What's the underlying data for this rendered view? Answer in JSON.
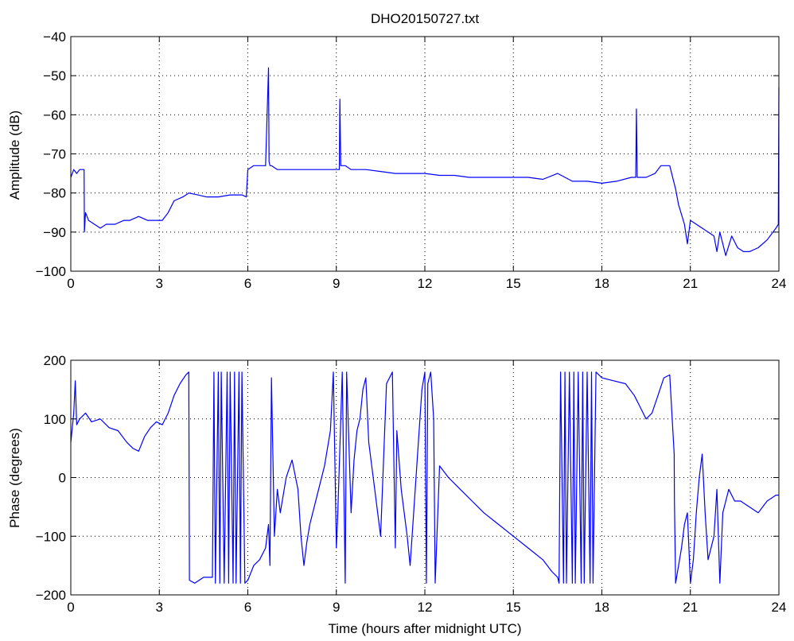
{
  "chart_data": [
    {
      "type": "line",
      "title": "DHO20150727.txt",
      "xlabel": "",
      "ylabel": "Amplitude (dB)",
      "xlim": [
        0,
        24
      ],
      "ylim": [
        -100,
        -40
      ],
      "xticks": [
        0,
        3,
        6,
        9,
        12,
        15,
        18,
        21,
        24
      ],
      "yticks": [
        -100,
        -90,
        -80,
        -70,
        -60,
        -50,
        -40
      ],
      "xtick_labels": [
        "0",
        "3",
        "6",
        "9",
        "12",
        "15",
        "18",
        "21",
        "24"
      ],
      "ytick_labels": [
        "−100",
        "−90",
        "−80",
        "−70",
        "−60",
        "−50",
        "−40"
      ],
      "grid": true,
      "color": "#0000ff",
      "series": [
        {
          "x": [
            0,
            0.1,
            0.2,
            0.3,
            0.45,
            0.46,
            0.5,
            0.55,
            0.6,
            0.8,
            1.0,
            1.2,
            1.5,
            1.8,
            2.0,
            2.3,
            2.6,
            2.9,
            3.1,
            3.3,
            3.5,
            3.8,
            4.0,
            4.3,
            4.6,
            5.0,
            5.4,
            5.8,
            5.95,
            6.0,
            6.2,
            6.4,
            6.6,
            6.7,
            6.72,
            6.75,
            6.8,
            7.0,
            7.5,
            8.0,
            8.5,
            9.0,
            9.1,
            9.12,
            9.15,
            9.3,
            9.5,
            10.0,
            10.5,
            11.0,
            11.5,
            12.0,
            12.5,
            13.0,
            13.5,
            14.0,
            14.5,
            15.0,
            15.5,
            16.0,
            16.5,
            17.0,
            17.5,
            18.0,
            18.5,
            19.0,
            19.15,
            19.17,
            19.2,
            19.5,
            19.8,
            20.0,
            20.3,
            20.5,
            20.6,
            20.8,
            20.9,
            21.0,
            21.2,
            21.4,
            21.6,
            21.8,
            21.9,
            22.0,
            22.2,
            22.4,
            22.6,
            22.8,
            23.0,
            23.3,
            23.6,
            23.9,
            23.98,
            24.0
          ],
          "y": [
            -76,
            -74,
            -75,
            -74,
            -74,
            -90,
            -85,
            -86,
            -87,
            -88,
            -89,
            -88,
            -88,
            -87,
            -87,
            -86,
            -87,
            -87,
            -87,
            -85,
            -82,
            -81,
            -80,
            -80.5,
            -81,
            -81,
            -80.5,
            -80.5,
            -81,
            -74,
            -73,
            -73,
            -73,
            -48,
            -72,
            -73,
            -73,
            -74,
            -74,
            -74,
            -74,
            -74,
            -74,
            -56,
            -73,
            -73,
            -74,
            -74,
            -74.5,
            -75,
            -75,
            -75,
            -75.5,
            -75.5,
            -76,
            -76,
            -76,
            -76,
            -76,
            -76.5,
            -75,
            -77,
            -77,
            -77.5,
            -77,
            -76,
            -76,
            -58.5,
            -76,
            -76,
            -75,
            -73,
            -73,
            -79,
            -83,
            -88,
            -93,
            -87,
            -88,
            -89,
            -90,
            -91,
            -95,
            -90,
            -96,
            -91,
            -94,
            -95,
            -95,
            -94,
            -92,
            -89,
            -88,
            -53
          ]
        }
      ]
    },
    {
      "type": "line",
      "title": "",
      "xlabel": "Time (hours after midnight UTC)",
      "ylabel": "Phase (degrees)",
      "xlim": [
        0,
        24
      ],
      "ylim": [
        -200,
        200
      ],
      "xticks": [
        0,
        3,
        6,
        9,
        12,
        15,
        18,
        21,
        24
      ],
      "yticks": [
        -200,
        -100,
        0,
        100,
        200
      ],
      "xtick_labels": [
        "0",
        "3",
        "6",
        "9",
        "12",
        "15",
        "18",
        "21",
        "24"
      ],
      "ytick_labels": [
        "−200",
        "−100",
        "0",
        "100",
        "200"
      ],
      "grid": true,
      "color": "#0000ff",
      "series": [
        {
          "x": [
            0,
            0.1,
            0.15,
            0.2,
            0.3,
            0.5,
            0.7,
            1.0,
            1.3,
            1.6,
            1.9,
            2.1,
            2.3,
            2.5,
            2.7,
            2.9,
            3.1,
            3.3,
            3.5,
            3.7,
            3.9,
            4.0,
            4.02,
            4.2,
            4.5,
            4.8,
            4.85,
            4.9,
            5.0,
            5.05,
            5.1,
            5.2,
            5.3,
            5.35,
            5.4,
            5.5,
            5.55,
            5.6,
            5.7,
            5.75,
            5.8,
            5.9,
            6.0,
            6.2,
            6.4,
            6.6,
            6.7,
            6.75,
            6.8,
            6.9,
            7.0,
            7.1,
            7.3,
            7.5,
            7.7,
            7.8,
            7.9,
            8.0,
            8.1,
            8.2,
            8.4,
            8.6,
            8.8,
            8.9,
            9.0,
            9.05,
            9.2,
            9.3,
            9.35,
            9.5,
            9.6,
            9.7,
            9.8,
            9.9,
            10.0,
            10.1,
            10.3,
            10.5,
            10.7,
            10.9,
            11.0,
            11.05,
            11.2,
            11.4,
            11.5,
            11.7,
            11.9,
            12.0,
            12.05,
            12.1,
            12.2,
            12.3,
            12.35,
            12.5,
            12.8,
            13.2,
            13.6,
            14.0,
            14.5,
            15.0,
            15.5,
            16.0,
            16.3,
            16.5,
            16.55,
            16.6,
            16.7,
            16.75,
            16.8,
            16.9,
            17.0,
            17.05,
            17.1,
            17.2,
            17.3,
            17.35,
            17.4,
            17.5,
            17.6,
            17.65,
            17.7,
            17.8,
            18.0,
            18.4,
            18.8,
            19.1,
            19.3,
            19.5,
            19.7,
            19.9,
            20.1,
            20.3,
            20.45,
            20.46,
            20.5,
            20.6,
            20.7,
            20.8,
            20.9,
            21.0,
            21.1,
            21.2,
            21.3,
            21.4,
            21.5,
            21.6,
            21.8,
            21.9,
            22.0,
            22.1,
            22.3,
            22.5,
            22.7,
            23.0,
            23.3,
            23.6,
            23.9,
            24.0
          ],
          "y": [
            60,
            110,
            165,
            90,
            100,
            110,
            95,
            100,
            85,
            80,
            60,
            50,
            45,
            70,
            85,
            95,
            90,
            110,
            140,
            160,
            175,
            180,
            -175,
            -180,
            -170,
            -170,
            180,
            -180,
            180,
            -180,
            180,
            -180,
            180,
            -180,
            180,
            -180,
            180,
            -180,
            180,
            -180,
            180,
            -180,
            -175,
            -150,
            -140,
            -120,
            -80,
            -150,
            170,
            -100,
            -20,
            -60,
            0,
            30,
            -20,
            -100,
            -150,
            -110,
            -80,
            -60,
            -20,
            20,
            80,
            180,
            -120,
            -60,
            180,
            -180,
            180,
            -60,
            30,
            80,
            100,
            150,
            170,
            60,
            -20,
            -100,
            160,
            180,
            -120,
            80,
            -20,
            -100,
            -150,
            0,
            150,
            180,
            -180,
            160,
            180,
            100,
            -180,
            20,
            0,
            -20,
            -40,
            -60,
            -80,
            -100,
            -120,
            -140,
            -160,
            -170,
            -180,
            180,
            -180,
            180,
            -180,
            180,
            -180,
            180,
            -180,
            180,
            -180,
            180,
            -180,
            180,
            -180,
            180,
            -180,
            180,
            170,
            165,
            160,
            140,
            120,
            100,
            110,
            140,
            170,
            175,
            40,
            -40,
            -180,
            -150,
            -120,
            -80,
            -60,
            -180,
            -140,
            -60,
            0,
            40,
            -60,
            -140,
            -100,
            -20,
            -180,
            -60,
            -20,
            -40,
            -40,
            -50,
            -60,
            -40,
            -30,
            -30
          ]
        }
      ]
    }
  ]
}
